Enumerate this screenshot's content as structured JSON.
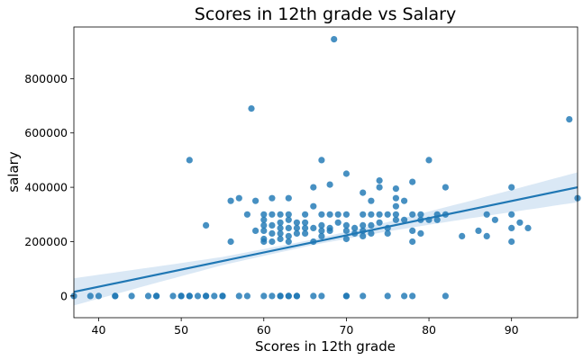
{
  "chart_data": {
    "type": "scatter",
    "title": "Scores in 12th grade vs Salary",
    "xlabel": "Scores in 12th grade",
    "ylabel": "salary",
    "xlim": [
      37,
      98
    ],
    "ylim": [
      -80000,
      990000
    ],
    "xticks": [
      40,
      50,
      60,
      70,
      80,
      90
    ],
    "yticks": [
      0,
      200000,
      400000,
      600000,
      800000
    ],
    "grid": false,
    "colors": {
      "points": "#1f77b4",
      "line": "#1f77b4",
      "band": "#c6dbef"
    },
    "regression": {
      "x": [
        37,
        98
      ],
      "y": [
        15000,
        400000
      ],
      "ci_halfwidth_at_x": [
        [
          37,
          50000
        ],
        [
          48,
          28000
        ],
        [
          55,
          15000
        ],
        [
          66,
          10000
        ],
        [
          75,
          17000
        ],
        [
          85,
          32000
        ],
        [
          98,
          55000
        ]
      ]
    },
    "points": [
      [
        37,
        0
      ],
      [
        39,
        0
      ],
      [
        40,
        0
      ],
      [
        42,
        0
      ],
      [
        42,
        0
      ],
      [
        44,
        0
      ],
      [
        46,
        0
      ],
      [
        47,
        0
      ],
      [
        47,
        0
      ],
      [
        49,
        0
      ],
      [
        50,
        0
      ],
      [
        50,
        0
      ],
      [
        51,
        0
      ],
      [
        51,
        0
      ],
      [
        52,
        0
      ],
      [
        53,
        0
      ],
      [
        53,
        0
      ],
      [
        54,
        0
      ],
      [
        55,
        0
      ],
      [
        55,
        0
      ],
      [
        57,
        0
      ],
      [
        58,
        0
      ],
      [
        60,
        0
      ],
      [
        61,
        0
      ],
      [
        62,
        0
      ],
      [
        62,
        0
      ],
      [
        63,
        0
      ],
      [
        63,
        0
      ],
      [
        64,
        0
      ],
      [
        64,
        0
      ],
      [
        66,
        0
      ],
      [
        67,
        0
      ],
      [
        70,
        0
      ],
      [
        70,
        0
      ],
      [
        72,
        0
      ],
      [
        75,
        0
      ],
      [
        77,
        0
      ],
      [
        78,
        0
      ],
      [
        82,
        0
      ],
      [
        51,
        500000
      ],
      [
        53,
        260000
      ],
      [
        56,
        200000
      ],
      [
        56,
        350000
      ],
      [
        57,
        360000
      ],
      [
        58,
        300000
      ],
      [
        58.5,
        690000
      ],
      [
        59,
        240000
      ],
      [
        59,
        350000
      ],
      [
        60,
        300000
      ],
      [
        60,
        280000
      ],
      [
        60,
        260000
      ],
      [
        60,
        240000
      ],
      [
        60,
        210000
      ],
      [
        60,
        200000
      ],
      [
        61,
        300000
      ],
      [
        61,
        360000
      ],
      [
        61,
        260000
      ],
      [
        61,
        230000
      ],
      [
        61,
        200000
      ],
      [
        62,
        300000
      ],
      [
        62,
        270000
      ],
      [
        62,
        250000
      ],
      [
        62,
        230000
      ],
      [
        62,
        210000
      ],
      [
        63,
        300000
      ],
      [
        63,
        360000
      ],
      [
        63,
        280000
      ],
      [
        63,
        250000
      ],
      [
        63,
        220000
      ],
      [
        63,
        200000
      ],
      [
        64,
        270000
      ],
      [
        64,
        250000
      ],
      [
        64,
        230000
      ],
      [
        65,
        300000
      ],
      [
        65,
        270000
      ],
      [
        65,
        250000
      ],
      [
        65,
        230000
      ],
      [
        66,
        330000
      ],
      [
        66,
        400000
      ],
      [
        66,
        250000
      ],
      [
        66,
        200000
      ],
      [
        67,
        300000
      ],
      [
        67,
        500000
      ],
      [
        67,
        260000
      ],
      [
        67,
        240000
      ],
      [
        67,
        220000
      ],
      [
        68,
        410000
      ],
      [
        68,
        300000
      ],
      [
        68,
        250000
      ],
      [
        68,
        240000
      ],
      [
        68.5,
        945000
      ],
      [
        69,
        300000
      ],
      [
        69,
        270000
      ],
      [
        70,
        300000
      ],
      [
        70,
        450000
      ],
      [
        70,
        260000
      ],
      [
        70,
        240000
      ],
      [
        70,
        210000
      ],
      [
        71,
        250000
      ],
      [
        71,
        230000
      ],
      [
        72,
        300000
      ],
      [
        72,
        380000
      ],
      [
        72,
        260000
      ],
      [
        72,
        240000
      ],
      [
        72,
        220000
      ],
      [
        73,
        300000
      ],
      [
        73,
        350000
      ],
      [
        73,
        260000
      ],
      [
        73,
        230000
      ],
      [
        74,
        300000
      ],
      [
        74,
        400000
      ],
      [
        74,
        425000
      ],
      [
        74,
        270000
      ],
      [
        75,
        300000
      ],
      [
        75,
        250000
      ],
      [
        75,
        230000
      ],
      [
        76,
        300000
      ],
      [
        76,
        330000
      ],
      [
        76,
        360000
      ],
      [
        76,
        395000
      ],
      [
        76,
        280000
      ],
      [
        77,
        350000
      ],
      [
        77,
        280000
      ],
      [
        78,
        300000
      ],
      [
        78,
        420000
      ],
      [
        78,
        240000
      ],
      [
        78,
        200000
      ],
      [
        79,
        300000
      ],
      [
        79,
        280000
      ],
      [
        79,
        230000
      ],
      [
        80,
        500000
      ],
      [
        80,
        280000
      ],
      [
        81,
        300000
      ],
      [
        81,
        280000
      ],
      [
        82,
        400000
      ],
      [
        82,
        300000
      ],
      [
        84,
        220000
      ],
      [
        86,
        240000
      ],
      [
        87,
        300000
      ],
      [
        87,
        220000
      ],
      [
        88,
        280000
      ],
      [
        90,
        400000
      ],
      [
        90,
        300000
      ],
      [
        90,
        250000
      ],
      [
        90,
        200000
      ],
      [
        91,
        270000
      ],
      [
        92,
        250000
      ],
      [
        97,
        650000
      ],
      [
        98,
        360000
      ]
    ]
  }
}
